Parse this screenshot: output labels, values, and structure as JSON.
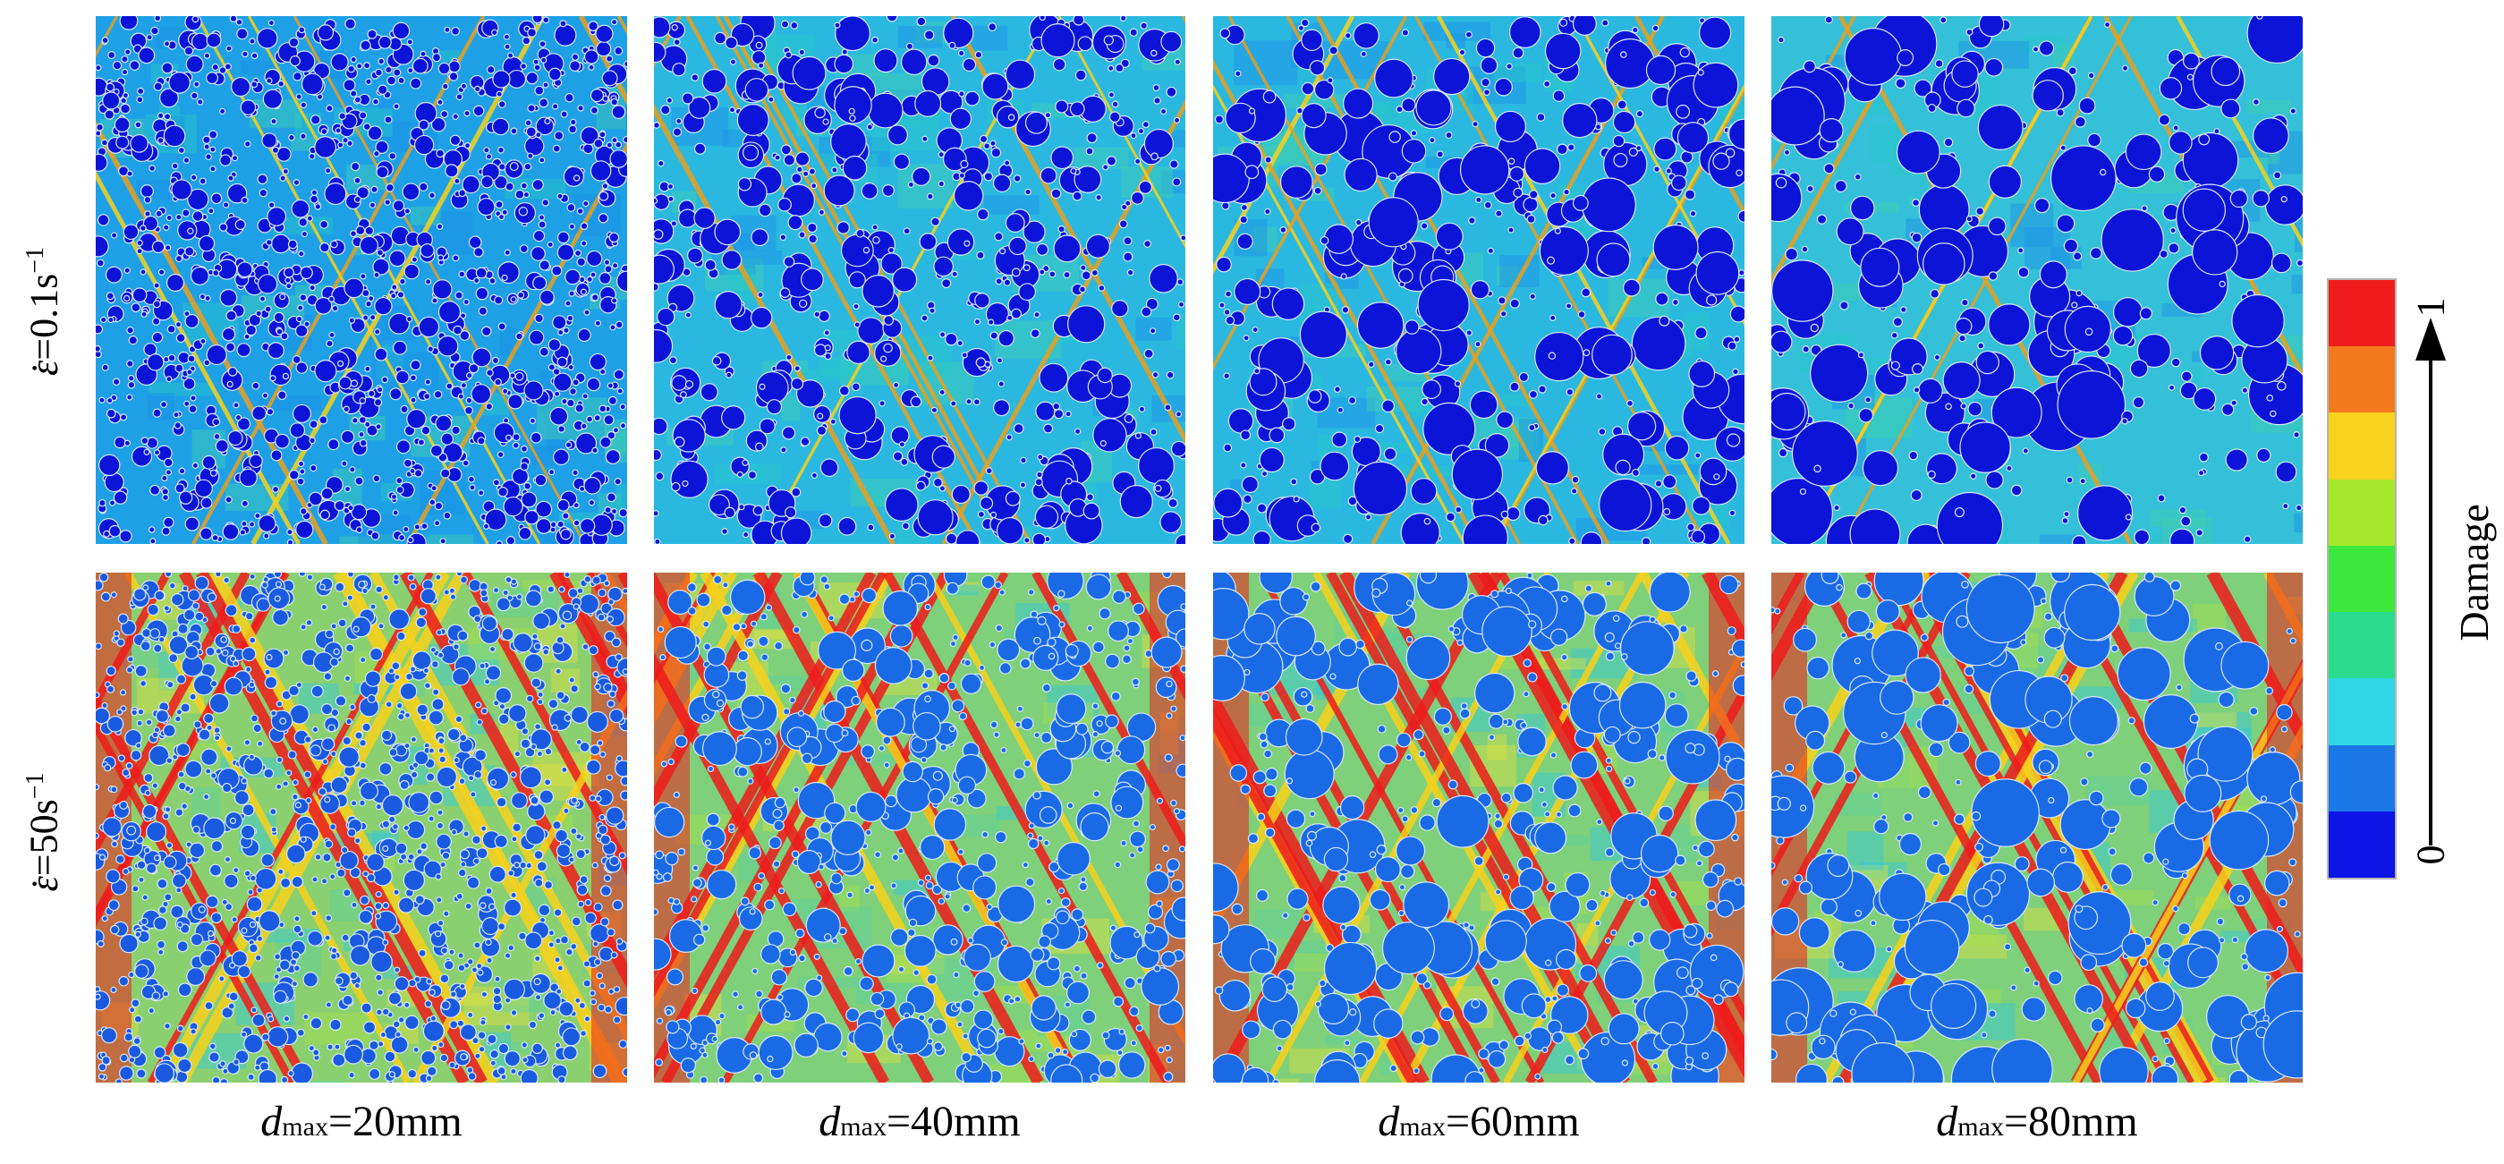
{
  "figure": {
    "row_labels": [
      {
        "symbol": "ε",
        "dot": "·",
        "text": "=0.1s",
        "sup": "−1"
      },
      {
        "symbol": "ε",
        "dot": "·",
        "text": "=50s",
        "sup": "−1"
      }
    ],
    "column_labels": [
      {
        "d": "d",
        "sub": "max",
        "text": "=20mm"
      },
      {
        "d": "d",
        "sub": "max",
        "text": "=40mm"
      },
      {
        "d": "d",
        "sub": "max",
        "text": "=60mm"
      },
      {
        "d": "d",
        "sub": "max",
        "text": "=80mm"
      }
    ],
    "colorbar": {
      "title": "Damage",
      "tick_min": "0",
      "tick_max": "1",
      "colors_top_to_bottom": [
        "#ee1c1c",
        "#f37a1c",
        "#f8d21c",
        "#a8e82c",
        "#3ce83c",
        "#2bdc8c",
        "#30d6e6",
        "#1a78e6",
        "#0c14e6"
      ]
    },
    "panels": [
      {
        "row": 0,
        "dmax_mm": 20,
        "strain_rate": 0.1,
        "matrix_color": "#1ea0e6",
        "aggregate_color": "#0c14d8",
        "crack_color": "#e8a020",
        "crack_intensity": "low"
      },
      {
        "row": 0,
        "dmax_mm": 40,
        "strain_rate": 0.1,
        "matrix_color": "#2ab8e0",
        "aggregate_color": "#0c14d8",
        "crack_color": "#e8a020",
        "crack_intensity": "low"
      },
      {
        "row": 0,
        "dmax_mm": 60,
        "strain_rate": 0.1,
        "matrix_color": "#2ab8e0",
        "aggregate_color": "#0c14d8",
        "crack_color": "#e8a020",
        "crack_intensity": "low"
      },
      {
        "row": 0,
        "dmax_mm": 80,
        "strain_rate": 0.1,
        "matrix_color": "#34c0d8",
        "aggregate_color": "#0c14d8",
        "crack_color": "#e8a020",
        "crack_intensity": "low"
      },
      {
        "row": 1,
        "dmax_mm": 20,
        "strain_rate": 50,
        "matrix_color": "#8ad070",
        "aggregate_color": "#1a5ae0",
        "crack_color": "#ee1c1c",
        "crack_intensity": "high"
      },
      {
        "row": 1,
        "dmax_mm": 40,
        "strain_rate": 50,
        "matrix_color": "#7fd07a",
        "aggregate_color": "#1a6ae6",
        "crack_color": "#ee1c1c",
        "crack_intensity": "high"
      },
      {
        "row": 1,
        "dmax_mm": 60,
        "strain_rate": 50,
        "matrix_color": "#7fd07a",
        "aggregate_color": "#1a6ae6",
        "crack_color": "#ee1c1c",
        "crack_intensity": "high"
      },
      {
        "row": 1,
        "dmax_mm": 80,
        "strain_rate": 50,
        "matrix_color": "#7fd07a",
        "aggregate_color": "#1a6ae6",
        "crack_color": "#ee1c1c",
        "crack_intensity": "high"
      }
    ]
  }
}
